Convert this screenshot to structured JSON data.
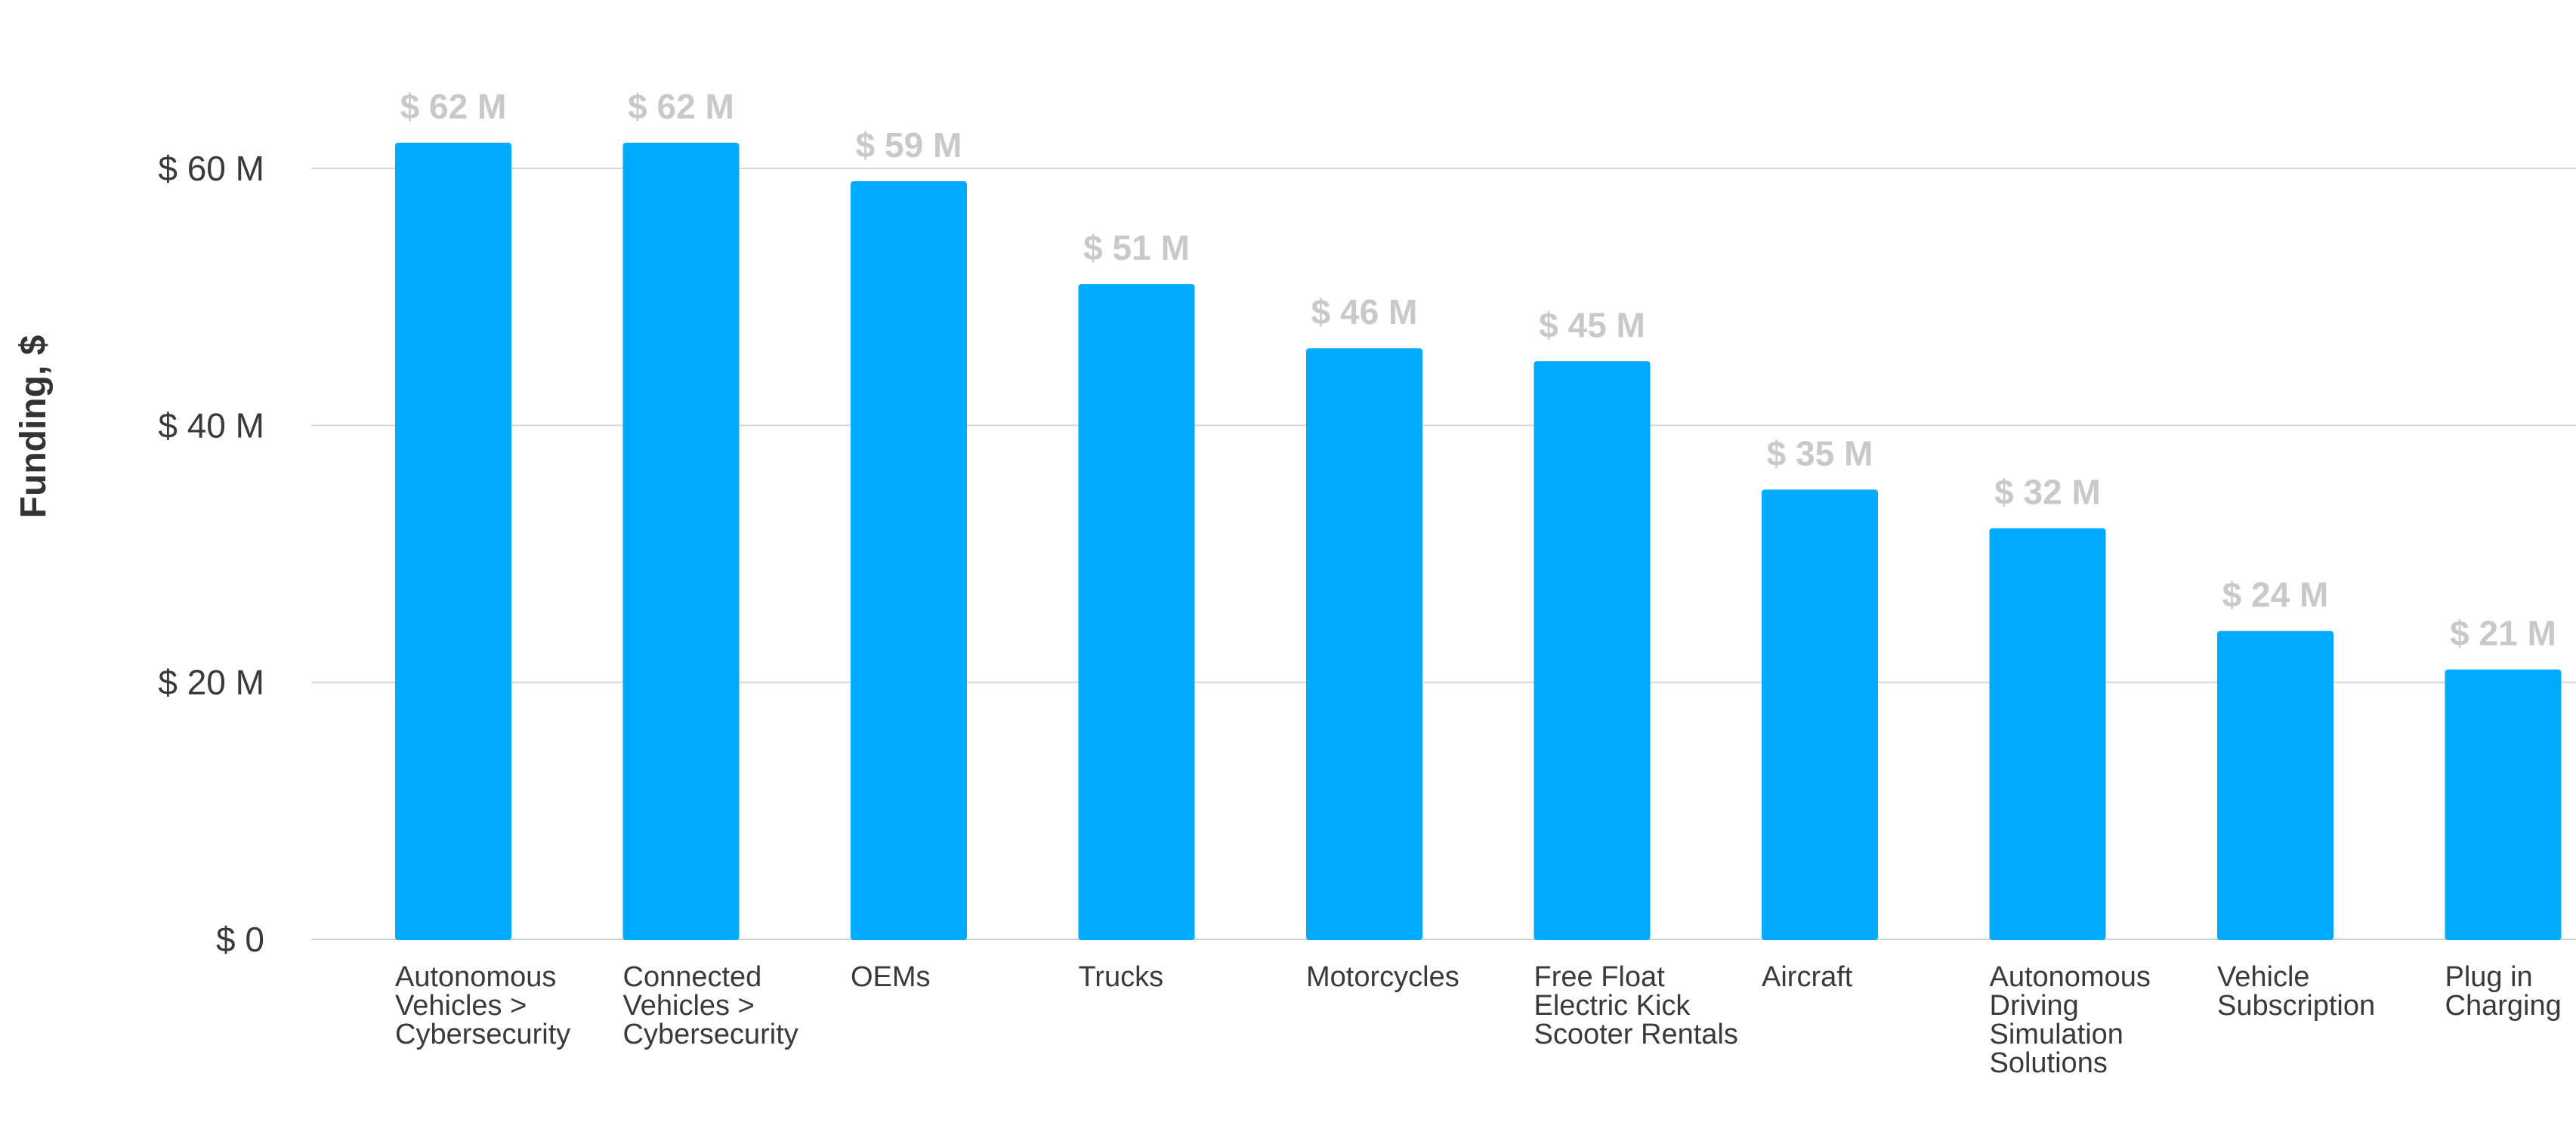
{
  "chart_data": {
    "type": "bar",
    "title": "",
    "xlabel": "",
    "ylabel": "Funding, $",
    "ylim": [
      0,
      70
    ],
    "yticks": [
      {
        "value": 0,
        "label": "$ 0"
      },
      {
        "value": 20,
        "label": "$ 20 M"
      },
      {
        "value": 40,
        "label": "$ 40 M"
      },
      {
        "value": 60,
        "label": "$ 60 M"
      }
    ],
    "grid": true,
    "bar_color": "#00aaff",
    "categories": [
      [
        "Autonomous",
        "Vehicles >",
        "Cybersecurity"
      ],
      [
        "Connected",
        "Vehicles >",
        "Cybersecurity"
      ],
      [
        "OEMs"
      ],
      [
        "Trucks"
      ],
      [
        "Motorcycles"
      ],
      [
        "Free Float",
        "Electric Kick",
        "Scooter Rentals"
      ],
      [
        "Aircraft"
      ],
      [
        "Autonomous",
        "Driving",
        "Simulation",
        "Solutions"
      ],
      [
        "Vehicle",
        "Subscription"
      ],
      [
        "Plug in",
        "Charging"
      ]
    ],
    "values": [
      62,
      62,
      59,
      51,
      46,
      45,
      35,
      32,
      24,
      21
    ],
    "value_labels": [
      "$ 62 M",
      "$ 62 M",
      "$ 59 M",
      "$ 51 M",
      "$ 46 M",
      "$ 45 M",
      "$ 35 M",
      "$ 32 M",
      "$ 24 M",
      "$ 21 M"
    ]
  }
}
